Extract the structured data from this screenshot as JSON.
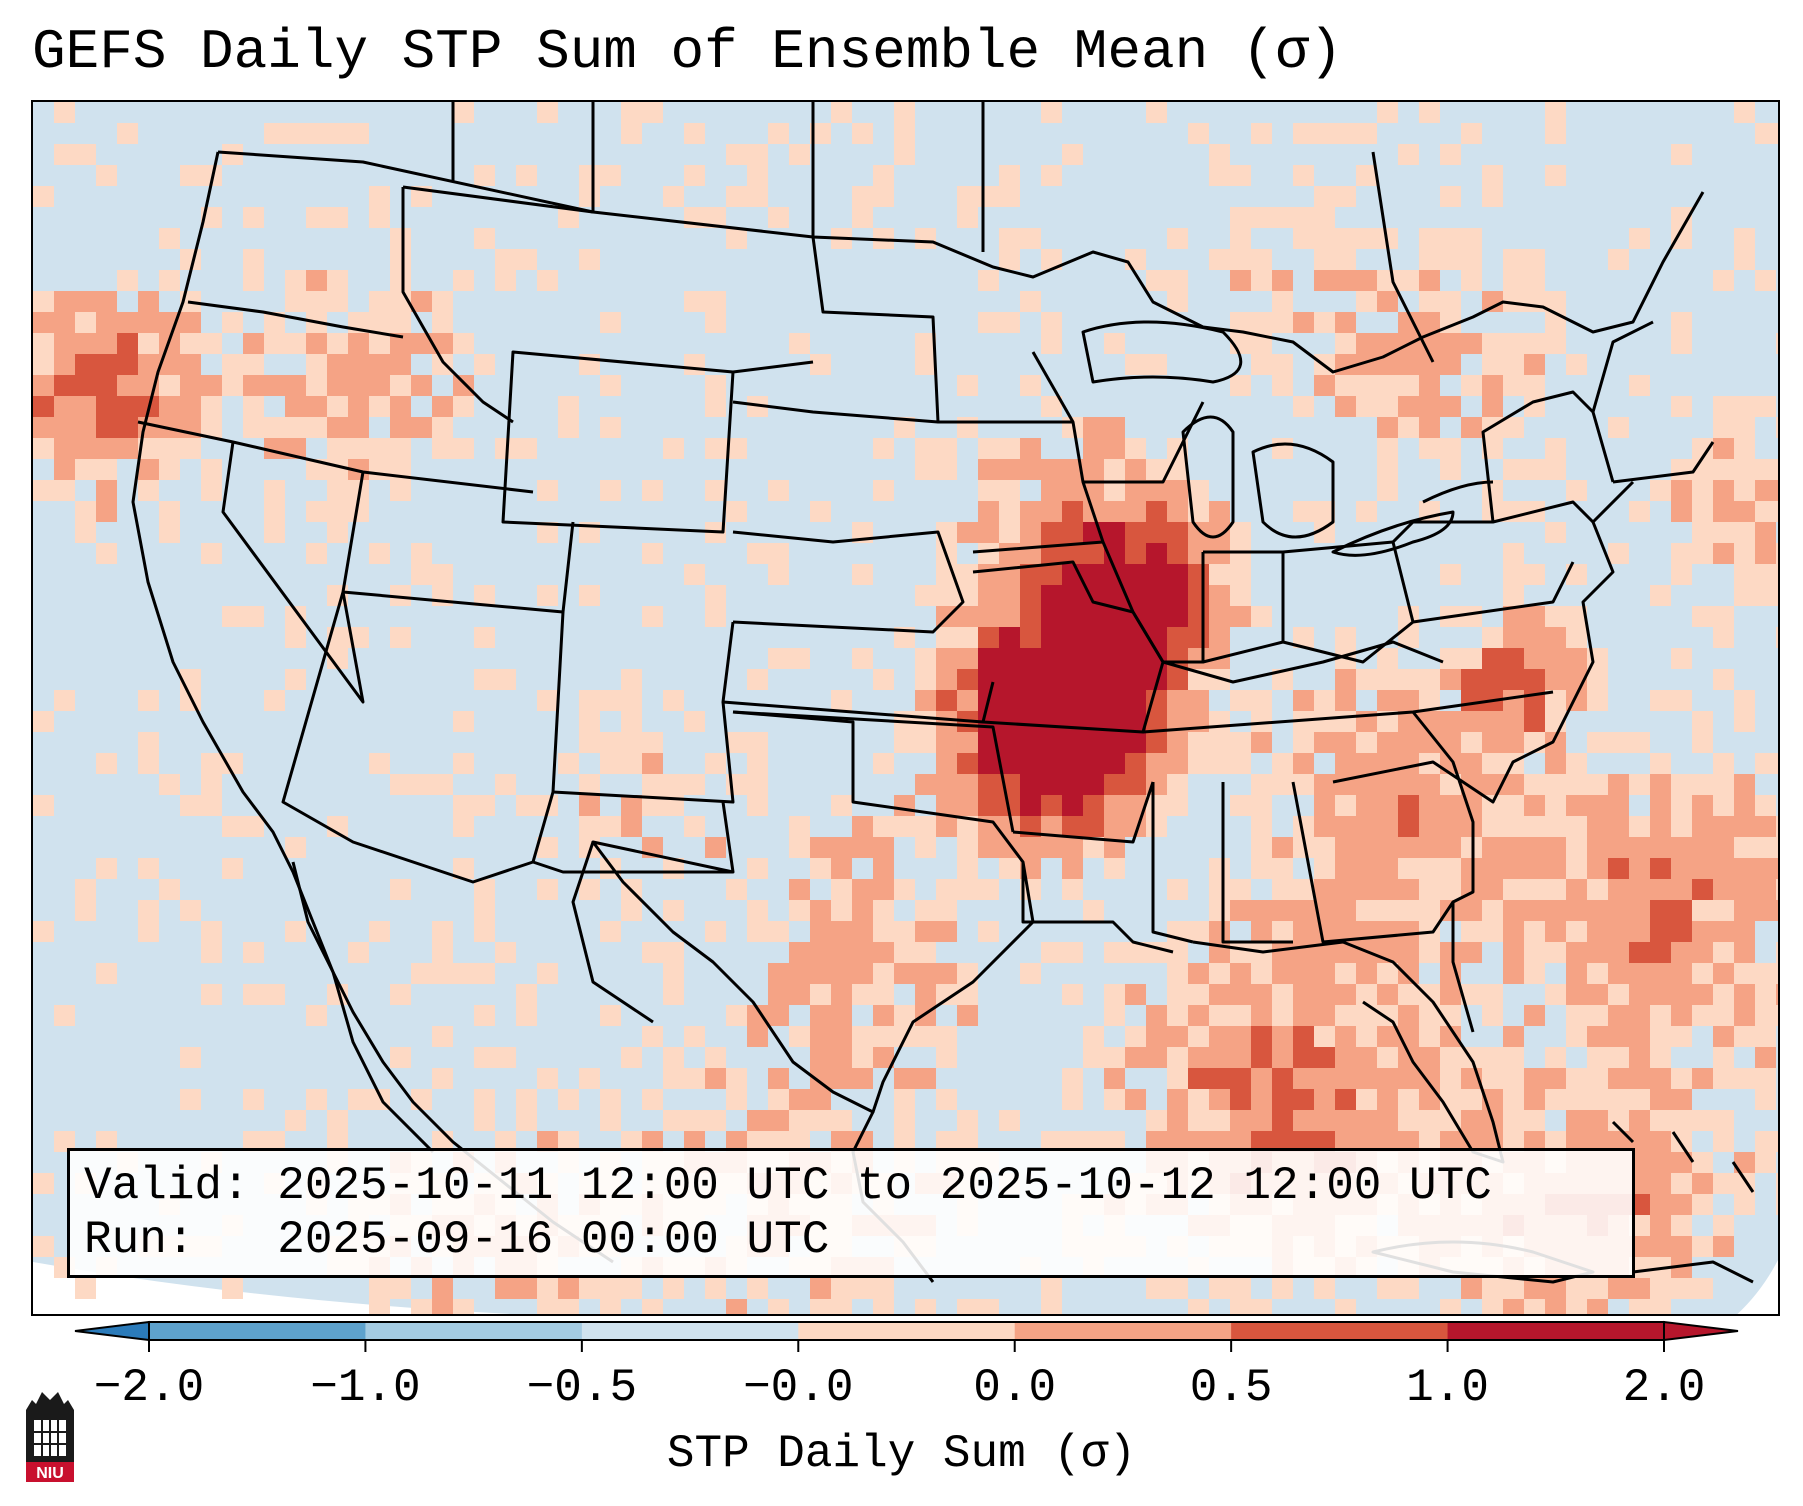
{
  "title": "GEFS Daily STP Sum of Ensemble Mean (σ)",
  "info": {
    "valid": "Valid: 2025-10-11 12:00 UTC to 2025-10-12 12:00 UTC",
    "run": "Run:   2025-09-16 00:00 UTC"
  },
  "colorbar": {
    "label": "STP Daily Sum (σ)",
    "ticks": [
      "−2.0",
      "−1.0",
      "−0.5",
      "−0.0",
      "0.0",
      "0.5",
      "1.0",
      "2.0"
    ],
    "colors": [
      "#2b7bba",
      "#5ea2cd",
      "#a4cbe2",
      "#d0e2ee",
      "#fdd9c4",
      "#f5a385",
      "#d8563e",
      "#b6162c"
    ]
  },
  "logo": {
    "text": "NIU",
    "icon": "university-tower-logo"
  }
}
